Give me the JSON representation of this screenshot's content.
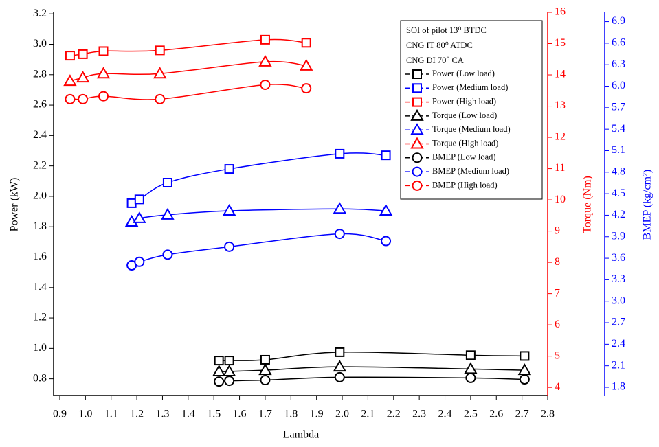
{
  "chart_data": {
    "type": "line",
    "x_label": "Lambda",
    "y_label": "Power (kW)",
    "y2_label": "Torque (Nm)",
    "y3_label": "BMEP (kg/cm²)",
    "xlim": [
      0.876,
      2.8
    ],
    "xticks": [
      0.9,
      {
        "value": 1,
        "label": "1.0"
      },
      1.1,
      1.2,
      1.3,
      1.4,
      1.5,
      1.6,
      1.7,
      1.8,
      1.9,
      {
        "value": 2,
        "label": "2.0"
      },
      2.1,
      2.2,
      2.3,
      2.4,
      2.5,
      2.6,
      2.7,
      2.8
    ],
    "ylim": [
      0.69,
      3.21
    ],
    "yticks": [
      0.8,
      {
        "value": 1,
        "label": "1.0"
      },
      1.2,
      1.4,
      1.6,
      1.8,
      {
        "value": 2,
        "label": "2.0"
      },
      2.2,
      2.4,
      2.6,
      2.8,
      {
        "value": 3,
        "label": "3.0"
      },
      3.2
    ],
    "y2lim": [
      3.74,
      16
    ],
    "y2ticks": [
      4,
      5,
      6,
      7,
      8,
      9,
      10,
      11,
      12,
      13,
      14,
      15,
      16
    ],
    "y3lim": [
      1.685,
      7.03
    ],
    "y3ticks": [
      1.8,
      2.1,
      2.4,
      2.7,
      {
        "value": 3,
        "label": "3.0"
      },
      3.3,
      3.6,
      3.9,
      4.2,
      4.5,
      4.8,
      5.1,
      5.4,
      5.7,
      {
        "value": 6,
        "label": "6.0"
      },
      6.3,
      6.6,
      6.9
    ],
    "annotations": [
      "SOI of pilot 13⁰ BTDC",
      "CNG IT 80⁰ ATDC",
      "CNG DI 70⁰ CA"
    ],
    "series": [
      {
        "name": "Power (Low load)",
        "color": "#000000",
        "marker": "square",
        "axis": "y",
        "x": [
          1.52,
          1.56,
          1.7,
          1.99,
          2.5,
          2.71
        ],
        "values": [
          0.92,
          0.92,
          0.925,
          0.975,
          0.955,
          0.95
        ]
      },
      {
        "name": "Power (Medium load)",
        "color": "#0000ff",
        "marker": "square",
        "axis": "y",
        "x": [
          1.18,
          1.21,
          1.32,
          1.56,
          1.99,
          2.17
        ],
        "values": [
          1.955,
          1.98,
          2.09,
          2.18,
          2.28,
          2.27
        ]
      },
      {
        "name": "Power (High load)",
        "color": "#ff0000",
        "marker": "square",
        "axis": "y",
        "x": [
          0.94,
          0.99,
          1.07,
          1.29,
          1.7,
          1.86
        ],
        "values": [
          2.925,
          2.935,
          2.955,
          2.96,
          3.03,
          3.01
        ]
      },
      {
        "name": "Torque (Low load)",
        "color": "#000000",
        "marker": "triangle",
        "axis": "y2",
        "x": [
          1.52,
          1.56,
          1.7,
          1.99,
          2.5,
          2.71
        ],
        "values": [
          4.51,
          4.51,
          4.55,
          4.66,
          4.59,
          4.55
        ]
      },
      {
        "name": "Torque (Medium load)",
        "color": "#0000ff",
        "marker": "triangle",
        "axis": "y2",
        "x": [
          1.18,
          1.21,
          1.32,
          1.56,
          1.99,
          2.17
        ],
        "values": [
          9.3,
          9.41,
          9.52,
          9.65,
          9.71,
          9.65
        ]
      },
      {
        "name": "Torque (High load)",
        "color": "#ff0000",
        "marker": "triangle",
        "axis": "y2",
        "x": [
          0.94,
          0.99,
          1.07,
          1.29,
          1.7,
          1.86
        ],
        "values": [
          13.8,
          13.91,
          14.04,
          14.04,
          14.42,
          14.29
        ]
      },
      {
        "name": "BMEP (Low load)",
        "color": "#000000",
        "marker": "circle",
        "axis": "y3",
        "x": [
          1.52,
          1.56,
          1.7,
          1.99,
          2.5,
          2.71
        ],
        "values": [
          1.88,
          1.89,
          1.9,
          1.94,
          1.93,
          1.91
        ]
      },
      {
        "name": "BMEP (Medium load)",
        "color": "#0000ff",
        "marker": "circle",
        "axis": "y3",
        "x": [
          1.18,
          1.21,
          1.32,
          1.56,
          1.99,
          2.17
        ],
        "values": [
          3.5,
          3.55,
          3.65,
          3.76,
          3.94,
          3.84
        ]
      },
      {
        "name": "BMEP (High load)",
        "color": "#ff0000",
        "marker": "circle",
        "axis": "y3",
        "x": [
          0.94,
          0.99,
          1.07,
          1.29,
          1.7,
          1.86
        ],
        "values": [
          5.82,
          5.82,
          5.86,
          5.82,
          6.02,
          5.97
        ]
      }
    ],
    "axis_colors": {
      "y": "#000000",
      "y2": "#ff0000",
      "y3": "#0000ff"
    }
  }
}
